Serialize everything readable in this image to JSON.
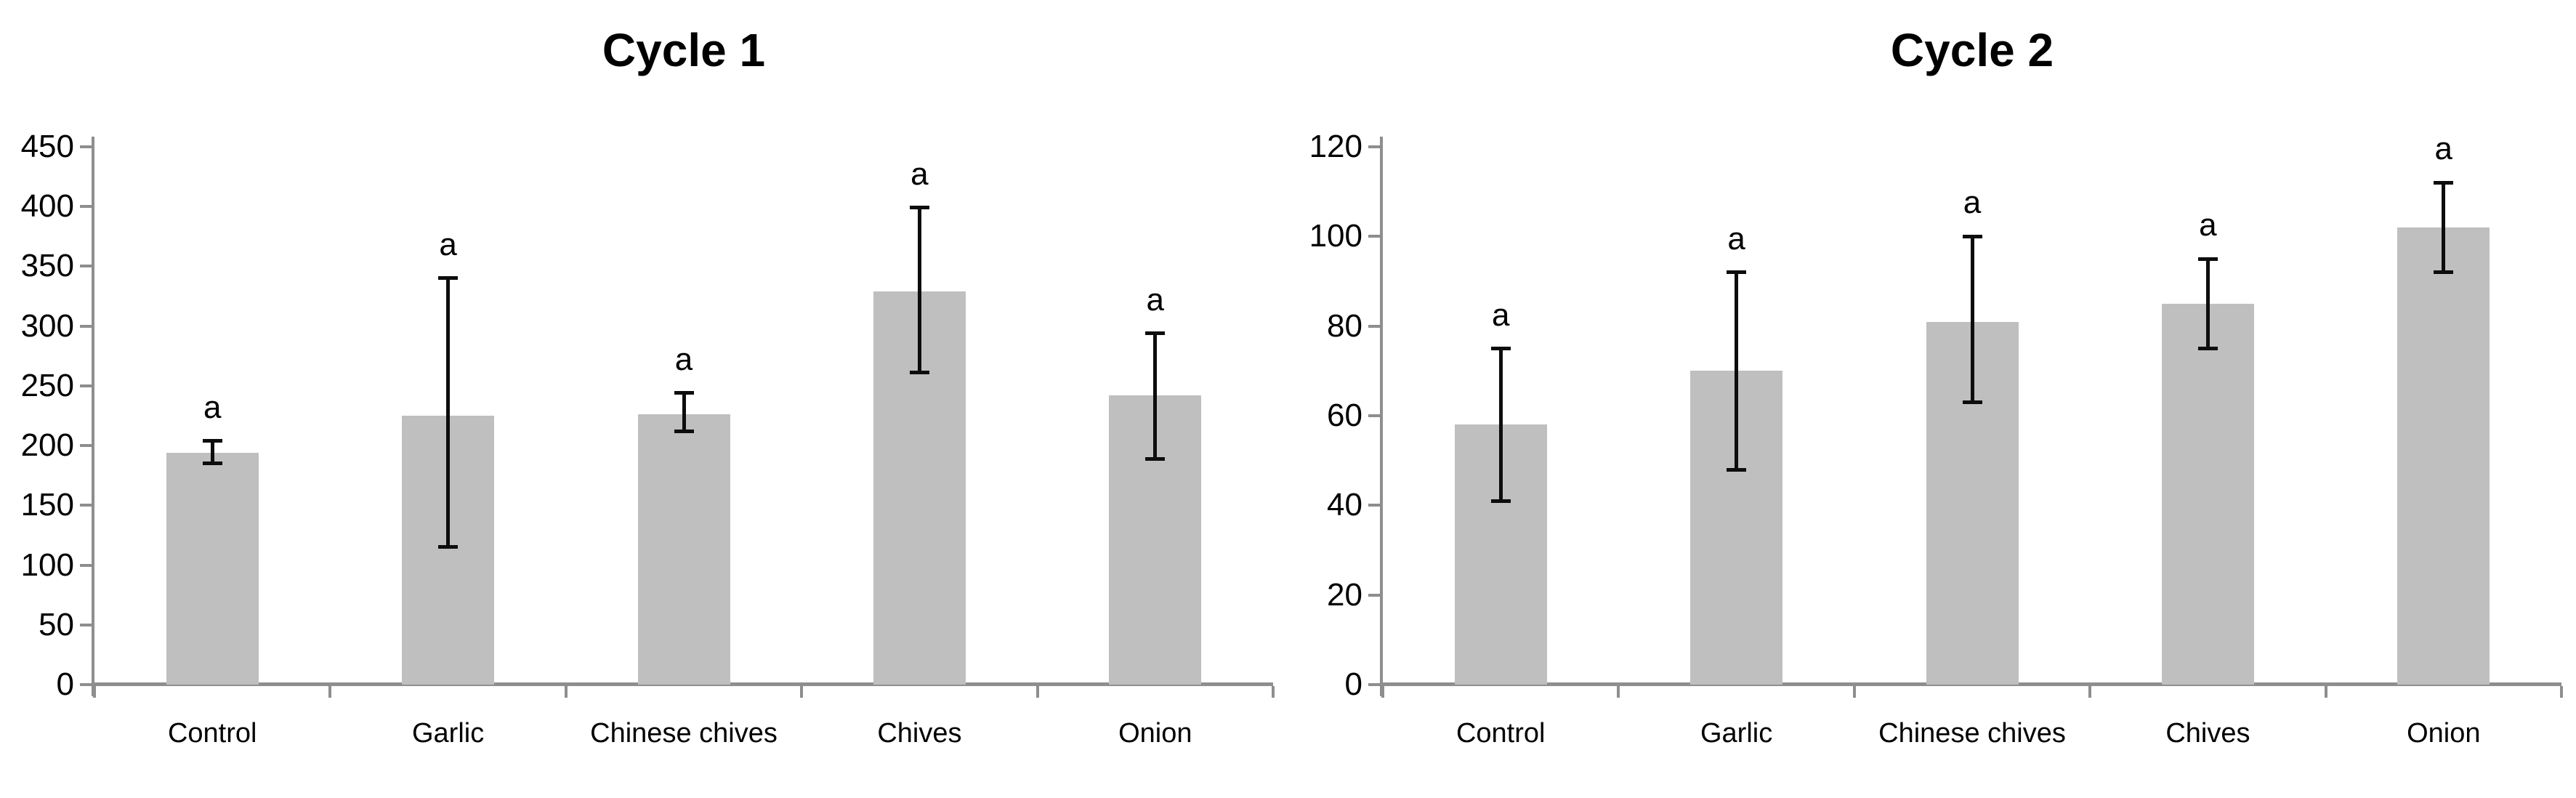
{
  "page_background": "#ffffff",
  "colors": {
    "bar_fill": "#bfbfbf",
    "axis": "#8e8e8e",
    "error_bar": "#0d0d0d",
    "text": "#000000"
  },
  "chart_data": [
    {
      "type": "bar",
      "title": "Cycle 1",
      "categories": [
        "Control",
        "Garlic",
        "Chinese chives",
        "Chives",
        "Onion"
      ],
      "series": [
        {
          "name": "mean",
          "values": [
            194,
            225,
            226,
            329,
            242
          ]
        }
      ],
      "error_low": [
        185,
        115,
        212,
        261,
        189
      ],
      "error_high": [
        204,
        340,
        244,
        399,
        294
      ],
      "bar_labels": [
        "a",
        "a",
        "a",
        "a",
        "a"
      ],
      "ylim": [
        0,
        450
      ],
      "ytick_interval": 50,
      "yticks": [
        450,
        400,
        350,
        300,
        250,
        200,
        150,
        100,
        50,
        0
      ],
      "xlabel": "",
      "ylabel": "",
      "grid": false,
      "legend": false
    },
    {
      "type": "bar",
      "title": "Cycle 2",
      "categories": [
        "Control",
        "Garlic",
        "Chinese chives",
        "Chives",
        "Onion"
      ],
      "series": [
        {
          "name": "mean",
          "values": [
            58,
            70,
            81,
            85,
            102
          ]
        }
      ],
      "error_low": [
        41,
        48,
        63,
        75,
        92
      ],
      "error_high": [
        75,
        92,
        100,
        95,
        112
      ],
      "bar_labels": [
        "a",
        "a",
        "a",
        "a",
        "a"
      ],
      "ylim": [
        0,
        120
      ],
      "ytick_interval": 20,
      "yticks": [
        120,
        100,
        80,
        60,
        40,
        20,
        0
      ],
      "xlabel": "",
      "ylabel": "",
      "grid": false,
      "legend": false
    }
  ]
}
